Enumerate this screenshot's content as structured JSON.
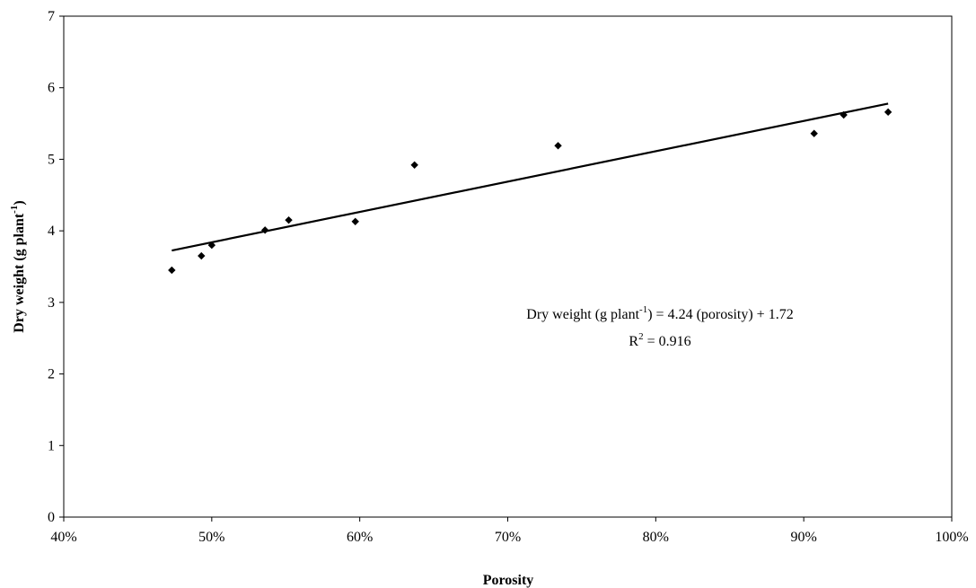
{
  "chart_data": {
    "type": "scatter",
    "title": "",
    "xlabel": "Porosity",
    "ylabel": {
      "main": "Dry weight (g plant",
      "sup": "-1",
      "close": ")"
    },
    "xlim": [
      0.4,
      1.0
    ],
    "ylim": [
      0,
      7
    ],
    "x_ticks": [
      "40%",
      "50%",
      "60%",
      "70%",
      "80%",
      "90%",
      "100%"
    ],
    "y_ticks": [
      "0",
      "1",
      "2",
      "3",
      "4",
      "5",
      "6",
      "7"
    ],
    "grid": false,
    "legend": "none",
    "series": [
      {
        "points": [
          {
            "x": 0.473,
            "y": 3.45
          },
          {
            "x": 0.493,
            "y": 3.65
          },
          {
            "x": 0.5,
            "y": 3.8
          },
          {
            "x": 0.536,
            "y": 4.01
          },
          {
            "x": 0.552,
            "y": 4.15
          },
          {
            "x": 0.597,
            "y": 4.13
          },
          {
            "x": 0.637,
            "y": 4.92
          },
          {
            "x": 0.734,
            "y": 5.19
          },
          {
            "x": 0.907,
            "y": 5.36
          },
          {
            "x": 0.927,
            "y": 5.62
          },
          {
            "x": 0.957,
            "y": 5.66
          }
        ]
      }
    ],
    "trendline": {
      "slope": 4.24,
      "intercept": 1.72,
      "x_range": [
        0.473,
        0.957
      ]
    },
    "annotation": {
      "equation_part1": "Dry weight  (g plant",
      "equation_sup": "-1",
      "equation_part2": ")  = 4.24 (porosity) + 1.72",
      "r2_prefix": "R",
      "r2_sup": "2",
      "r2_value": " = 0.916"
    },
    "colors": {
      "marker": "#000000",
      "line": "#000000",
      "axis": "#000000"
    }
  }
}
